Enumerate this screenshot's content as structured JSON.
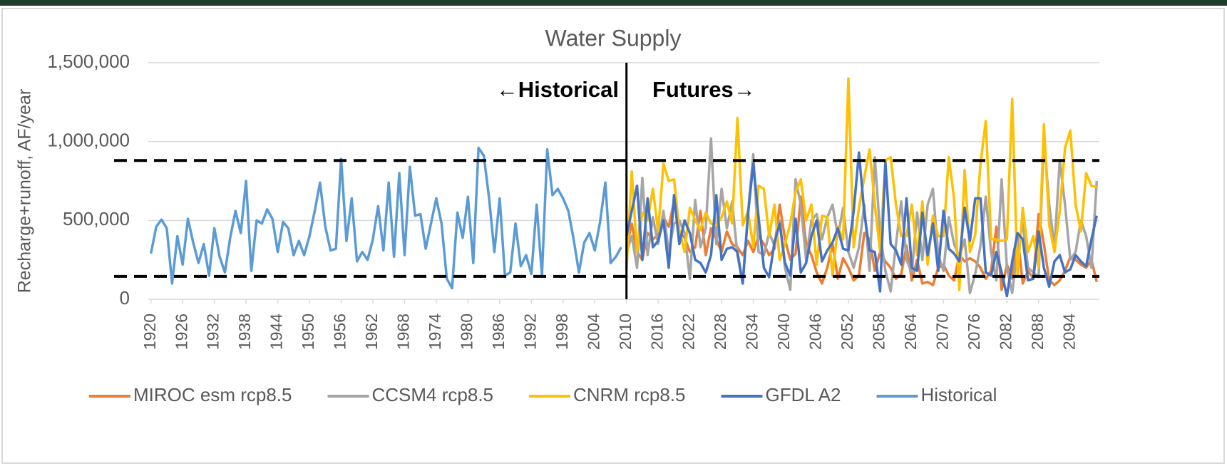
{
  "chart_data": {
    "type": "line",
    "title": "Water Supply",
    "y_label": "Recharge+runoff, AF/year",
    "annotations": {
      "left": "←Historical",
      "right": "Futures→"
    },
    "divider_x": 2010,
    "reference_lines": [
      880000,
      145000
    ],
    "grid": true,
    "legend": "bottom",
    "xlim": [
      1919.5,
      2099.5
    ],
    "xticks": [
      1920,
      1926,
      1932,
      1938,
      1944,
      1950,
      1956,
      1962,
      1968,
      1974,
      1980,
      1986,
      1992,
      1998,
      2004,
      2010,
      2016,
      2022,
      2028,
      2034,
      2040,
      2046,
      2052,
      2058,
      2064,
      2070,
      2076,
      2082,
      2088,
      2094
    ],
    "ylim": [
      0,
      1500000
    ],
    "yticks": [
      0,
      {
        "value": 500000,
        "label": "500,000"
      },
      {
        "value": 1000000,
        "label": "1,000,000"
      },
      {
        "value": 1500000,
        "label": "1,500,000"
      }
    ],
    "x": [
      1920,
      1921,
      1922,
      1923,
      1924,
      1925,
      1926,
      1927,
      1928,
      1929,
      1930,
      1931,
      1932,
      1933,
      1934,
      1935,
      1936,
      1937,
      1938,
      1939,
      1940,
      1941,
      1942,
      1943,
      1944,
      1945,
      1946,
      1947,
      1948,
      1949,
      1950,
      1951,
      1952,
      1953,
      1954,
      1955,
      1956,
      1957,
      1958,
      1959,
      1960,
      1961,
      1962,
      1963,
      1964,
      1965,
      1966,
      1967,
      1968,
      1969,
      1970,
      1971,
      1972,
      1973,
      1974,
      1975,
      1976,
      1977,
      1978,
      1979,
      1980,
      1981,
      1982,
      1983,
      1984,
      1985,
      1986,
      1987,
      1988,
      1989,
      1990,
      1991,
      1992,
      1993,
      1994,
      1995,
      1996,
      1997,
      1998,
      1999,
      2000,
      2001,
      2002,
      2003,
      2004,
      2005,
      2006,
      2007,
      2008,
      2009,
      2010,
      2011,
      2012,
      2013,
      2014,
      2015,
      2016,
      2017,
      2018,
      2019,
      2020,
      2021,
      2022,
      2023,
      2024,
      2025,
      2026,
      2027,
      2028,
      2029,
      2030,
      2031,
      2032,
      2033,
      2034,
      2035,
      2036,
      2037,
      2038,
      2039,
      2040,
      2041,
      2042,
      2043,
      2044,
      2045,
      2046,
      2047,
      2048,
      2049,
      2050,
      2051,
      2052,
      2053,
      2054,
      2055,
      2056,
      2057,
      2058,
      2059,
      2060,
      2061,
      2062,
      2063,
      2064,
      2065,
      2066,
      2067,
      2068,
      2069,
      2070,
      2071,
      2072,
      2073,
      2074,
      2075,
      2076,
      2077,
      2078,
      2079,
      2080,
      2081,
      2082,
      2083,
      2084,
      2085,
      2086,
      2087,
      2088,
      2089,
      2090,
      2091,
      2092,
      2093,
      2094,
      2095,
      2096,
      2097,
      2098,
      2099
    ],
    "series": [
      {
        "name": "MIROC esm rcp8.5",
        "color": "#ed7d31",
        "values": [
          null,
          null,
          null,
          null,
          null,
          null,
          null,
          null,
          null,
          null,
          null,
          null,
          null,
          null,
          null,
          null,
          null,
          null,
          null,
          null,
          null,
          null,
          null,
          null,
          null,
          null,
          null,
          null,
          null,
          null,
          null,
          null,
          null,
          null,
          null,
          null,
          null,
          null,
          null,
          null,
          null,
          null,
          null,
          null,
          null,
          null,
          null,
          null,
          null,
          null,
          null,
          null,
          null,
          null,
          null,
          null,
          null,
          null,
          null,
          null,
          null,
          null,
          null,
          null,
          null,
          null,
          null,
          null,
          null,
          null,
          null,
          null,
          null,
          null,
          null,
          null,
          null,
          null,
          null,
          null,
          null,
          null,
          null,
          null,
          null,
          null,
          null,
          null,
          null,
          null,
          330000,
          480000,
          300000,
          250000,
          420000,
          380000,
          410000,
          520000,
          460000,
          620000,
          430000,
          390000,
          300000,
          330000,
          560000,
          280000,
          450000,
          380000,
          300000,
          430000,
          350000,
          330000,
          280000,
          370000,
          300000,
          400000,
          350000,
          280000,
          320000,
          600000,
          380000,
          250000,
          290000,
          650000,
          350000,
          280000,
          170000,
          100000,
          200000,
          350000,
          130000,
          260000,
          200000,
          120000,
          150000,
          420000,
          380000,
          180000,
          300000,
          240000,
          200000,
          130000,
          160000,
          340000,
          120000,
          250000,
          100000,
          110000,
          90000,
          200000,
          220000,
          150000,
          120000,
          280000,
          240000,
          260000,
          240000,
          200000,
          130000,
          180000,
          460000,
          60000,
          220000,
          130000,
          410000,
          100000,
          180000,
          130000,
          540000,
          350000,
          120000,
          90000,
          120000,
          180000,
          270000,
          250000,
          220000,
          200000,
          250000,
          110000
        ]
      },
      {
        "name": "CCSM4 rcp8.5",
        "color": "#a5a5a5",
        "values": [
          null,
          null,
          null,
          null,
          null,
          null,
          null,
          null,
          null,
          null,
          null,
          null,
          null,
          null,
          null,
          null,
          null,
          null,
          null,
          null,
          null,
          null,
          null,
          null,
          null,
          null,
          null,
          null,
          null,
          null,
          null,
          null,
          null,
          null,
          null,
          null,
          null,
          null,
          null,
          null,
          null,
          null,
          null,
          null,
          null,
          null,
          null,
          null,
          null,
          null,
          null,
          null,
          null,
          null,
          null,
          null,
          null,
          null,
          null,
          null,
          null,
          null,
          null,
          null,
          null,
          null,
          null,
          null,
          null,
          null,
          null,
          null,
          null,
          null,
          null,
          null,
          null,
          null,
          null,
          null,
          null,
          null,
          null,
          null,
          null,
          null,
          null,
          null,
          null,
          null,
          300000,
          400000,
          200000,
          770000,
          280000,
          520000,
          350000,
          560000,
          300000,
          480000,
          500000,
          420000,
          130000,
          630000,
          330000,
          450000,
          1020000,
          350000,
          700000,
          450000,
          620000,
          280000,
          100000,
          550000,
          920000,
          300000,
          280000,
          420000,
          340000,
          500000,
          200000,
          60000,
          760000,
          600000,
          250000,
          500000,
          540000,
          380000,
          520000,
          600000,
          400000,
          580000,
          300000,
          200000,
          330000,
          600000,
          180000,
          900000,
          420000,
          180000,
          50000,
          350000,
          620000,
          250000,
          170000,
          550000,
          250000,
          600000,
          700000,
          280000,
          180000,
          520000,
          350000,
          270000,
          380000,
          40000,
          160000,
          340000,
          650000,
          300000,
          120000,
          760000,
          200000,
          40000,
          320000,
          480000,
          200000,
          170000,
          140000,
          1030000,
          600000,
          330000,
          880000,
          600000,
          250000,
          300000,
          500000,
          400000,
          200000,
          750000
        ]
      },
      {
        "name": "CNRM rcp8.5",
        "color": "#ffc000",
        "values": [
          null,
          null,
          null,
          null,
          null,
          null,
          null,
          null,
          null,
          null,
          null,
          null,
          null,
          null,
          null,
          null,
          null,
          null,
          null,
          null,
          null,
          null,
          null,
          null,
          null,
          null,
          null,
          null,
          null,
          null,
          null,
          null,
          null,
          null,
          null,
          null,
          null,
          null,
          null,
          null,
          null,
          null,
          null,
          null,
          null,
          null,
          null,
          null,
          null,
          null,
          null,
          null,
          null,
          null,
          null,
          null,
          null,
          null,
          null,
          null,
          null,
          null,
          null,
          null,
          null,
          null,
          null,
          null,
          null,
          null,
          null,
          null,
          null,
          null,
          null,
          null,
          null,
          null,
          null,
          null,
          null,
          null,
          null,
          null,
          null,
          null,
          null,
          null,
          null,
          null,
          190000,
          810000,
          300000,
          550000,
          500000,
          700000,
          430000,
          860000,
          750000,
          760000,
          440000,
          300000,
          580000,
          500000,
          440000,
          550000,
          480000,
          470000,
          520000,
          620000,
          480000,
          1150000,
          470000,
          560000,
          330000,
          720000,
          700000,
          400000,
          600000,
          250000,
          350000,
          480000,
          680000,
          760000,
          500000,
          600000,
          220000,
          530000,
          520000,
          150000,
          460000,
          380000,
          1400000,
          330000,
          580000,
          770000,
          950000,
          600000,
          300000,
          880000,
          900000,
          600000,
          400000,
          400000,
          600000,
          280000,
          620000,
          220000,
          530000,
          400000,
          400000,
          900000,
          640000,
          60000,
          820000,
          300000,
          410000,
          860000,
          1130000,
          380000,
          380000,
          370000,
          380000,
          1270000,
          150000,
          580000,
          300000,
          400000,
          200000,
          1110000,
          470000,
          300000,
          560000,
          960000,
          1070000,
          600000,
          430000,
          800000,
          720000,
          710000
        ]
      },
      {
        "name": "GFDL A2",
        "color": "#4472c4",
        "values": [
          null,
          null,
          null,
          null,
          null,
          null,
          null,
          null,
          null,
          null,
          null,
          null,
          null,
          null,
          null,
          null,
          null,
          null,
          null,
          null,
          null,
          null,
          null,
          null,
          null,
          null,
          null,
          null,
          null,
          null,
          null,
          null,
          null,
          null,
          null,
          null,
          null,
          null,
          null,
          null,
          null,
          null,
          null,
          null,
          null,
          null,
          null,
          null,
          null,
          null,
          null,
          null,
          null,
          null,
          null,
          null,
          null,
          null,
          null,
          null,
          null,
          null,
          null,
          null,
          null,
          null,
          null,
          null,
          null,
          null,
          null,
          null,
          null,
          null,
          null,
          null,
          null,
          null,
          null,
          null,
          null,
          null,
          null,
          null,
          null,
          null,
          null,
          null,
          null,
          null,
          400000,
          560000,
          720000,
          250000,
          640000,
          330000,
          370000,
          500000,
          200000,
          660000,
          350000,
          500000,
          420000,
          250000,
          230000,
          170000,
          280000,
          660000,
          250000,
          320000,
          330000,
          300000,
          100000,
          540000,
          860000,
          520000,
          200000,
          140000,
          360000,
          480000,
          230000,
          150000,
          510000,
          170000,
          230000,
          400000,
          500000,
          240000,
          310000,
          360000,
          450000,
          320000,
          310000,
          560000,
          930000,
          550000,
          310000,
          300000,
          50000,
          870000,
          350000,
          310000,
          220000,
          640000,
          200000,
          180000,
          550000,
          280000,
          480000,
          180000,
          560000,
          320000,
          290000,
          240000,
          580000,
          370000,
          640000,
          640000,
          170000,
          150000,
          300000,
          170000,
          20000,
          240000,
          420000,
          380000,
          120000,
          130000,
          430000,
          200000,
          80000,
          240000,
          280000,
          170000,
          190000,
          280000,
          240000,
          210000,
          380000,
          530000
        ]
      },
      {
        "name": "Historical",
        "color": "#5b9bd5",
        "values": [
          290000,
          460000,
          505000,
          450000,
          100000,
          400000,
          220000,
          510000,
          360000,
          230000,
          350000,
          150000,
          450000,
          270000,
          170000,
          390000,
          560000,
          420000,
          750000,
          180000,
          500000,
          480000,
          570000,
          510000,
          300000,
          490000,
          450000,
          280000,
          370000,
          280000,
          400000,
          560000,
          740000,
          460000,
          310000,
          320000,
          890000,
          370000,
          640000,
          240000,
          300000,
          250000,
          380000,
          590000,
          310000,
          740000,
          270000,
          800000,
          280000,
          840000,
          530000,
          540000,
          320000,
          480000,
          640000,
          480000,
          130000,
          70000,
          550000,
          390000,
          650000,
          230000,
          960000,
          910000,
          640000,
          300000,
          640000,
          150000,
          170000,
          480000,
          210000,
          280000,
          160000,
          600000,
          150000,
          950000,
          660000,
          700000,
          640000,
          560000,
          380000,
          170000,
          360000,
          420000,
          310000,
          490000,
          740000,
          230000,
          270000,
          330000,
          null,
          null,
          null,
          null,
          null,
          null,
          null,
          null,
          null,
          null,
          null,
          null,
          null,
          null,
          null,
          null,
          null,
          null,
          null,
          null,
          null,
          null,
          null,
          null,
          null,
          null,
          null,
          null,
          null,
          null,
          null,
          null,
          null,
          null,
          null,
          null,
          null,
          null,
          null,
          null,
          null,
          null,
          null,
          null,
          null,
          null,
          null,
          null,
          null,
          null,
          null,
          null,
          null,
          null,
          null,
          null,
          null,
          null,
          null,
          null,
          null,
          null,
          null,
          null,
          null,
          null,
          null,
          null,
          null,
          null,
          null,
          null,
          null,
          null,
          null,
          null,
          null,
          null,
          null,
          null,
          null,
          null,
          null,
          null,
          null,
          null,
          null,
          null,
          null,
          null
        ]
      }
    ]
  }
}
